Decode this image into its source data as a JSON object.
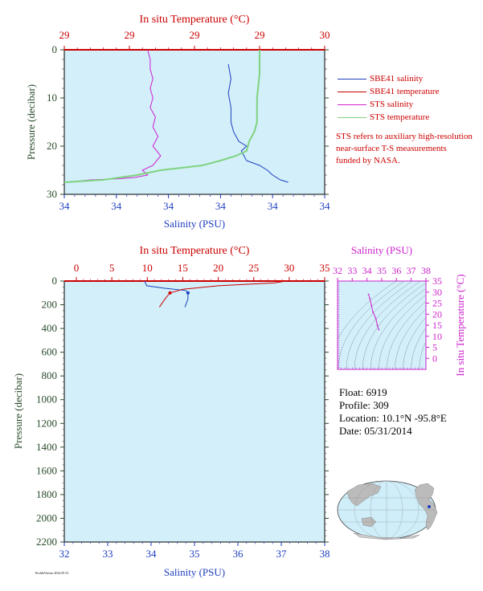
{
  "chart_data": [
    {
      "type": "line",
      "panel": "top",
      "top_axis_label": "In situ Temperature (°C)",
      "top_tick_labels": [
        "29",
        "29",
        "29",
        "29",
        "30"
      ],
      "bottom_axis_label": "Salinity (PSU)",
      "bottom_tick_labels": [
        "34",
        "34",
        "34",
        "34",
        "34",
        "34"
      ],
      "ylabel": "Pressure (decibar)",
      "ylim": [
        0,
        30
      ],
      "y_ticks": [
        0,
        10,
        20,
        30
      ],
      "series": [
        {
          "name": "SBE41 salinity",
          "color": "#1f3fbf",
          "points": [
            [
              0.63,
              3
            ],
            [
              0.64,
              6
            ],
            [
              0.63,
              9
            ],
            [
              0.64,
              12
            ],
            [
              0.64,
              15
            ],
            [
              0.65,
              17
            ],
            [
              0.67,
              19
            ],
            [
              0.7,
              20
            ],
            [
              0.68,
              21
            ],
            [
              0.7,
              23
            ],
            [
              0.75,
              24
            ],
            [
              0.78,
              25
            ],
            [
              0.8,
              26
            ],
            [
              0.83,
              27
            ],
            [
              0.86,
              27.5
            ]
          ]
        },
        {
          "name": "SBE41 temperature",
          "color": "#cc0000",
          "points": []
        },
        {
          "name": "STS salinity",
          "color": "#d020d0",
          "points": [
            [
              0.32,
              0
            ],
            [
              0.33,
              2
            ],
            [
              0.33,
              4
            ],
            [
              0.34,
              6
            ],
            [
              0.33,
              8
            ],
            [
              0.34,
              10
            ],
            [
              0.33,
              12
            ],
            [
              0.35,
              14
            ],
            [
              0.34,
              16
            ],
            [
              0.36,
              18
            ],
            [
              0.34,
              20
            ],
            [
              0.37,
              22
            ],
            [
              0.34,
              24
            ],
            [
              0.3,
              25
            ],
            [
              0.32,
              26
            ],
            [
              0.27,
              26.5
            ],
            [
              0.2,
              26.8
            ],
            [
              0.1,
              27
            ],
            [
              0.05,
              27.3
            ]
          ]
        },
        {
          "name": "STS temperature",
          "color": "#7fd37f",
          "points": [
            [
              0.75,
              0
            ],
            [
              0.75,
              5
            ],
            [
              0.74,
              10
            ],
            [
              0.74,
              15
            ],
            [
              0.73,
              17
            ],
            [
              0.71,
              19
            ],
            [
              0.7,
              21
            ],
            [
              0.66,
              22
            ],
            [
              0.6,
              23
            ],
            [
              0.53,
              24
            ],
            [
              0.45,
              24.5
            ],
            [
              0.37,
              25
            ],
            [
              0.28,
              26
            ],
            [
              0.15,
              27
            ],
            [
              0.0,
              27.5
            ]
          ]
        }
      ]
    },
    {
      "type": "line",
      "panel": "bottom",
      "top_axis_label": "In situ Temperature (°C)",
      "top_ticks": [
        0,
        5,
        10,
        15,
        20,
        25,
        30,
        35
      ],
      "bottom_axis_label": "Salinity (PSU)",
      "bottom_ticks": [
        32,
        33,
        34,
        35,
        36,
        37,
        38
      ],
      "ylabel": "Pressure (decibar)",
      "ylim": [
        0,
        2200
      ],
      "y_ticks": [
        0,
        200,
        400,
        600,
        800,
        1000,
        1200,
        1400,
        1600,
        1800,
        2000,
        2200
      ],
      "series": [
        {
          "name": "SBE41 salinity",
          "color": "#1f3fbf",
          "axis": "salinity",
          "points": [
            [
              33.85,
              0
            ],
            [
              33.9,
              40
            ],
            [
              34.3,
              60
            ],
            [
              34.8,
              80
            ],
            [
              34.85,
              100
            ],
            [
              34.85,
              150
            ],
            [
              34.78,
              220
            ]
          ]
        },
        {
          "name": "SBE41 temperature",
          "color": "#cc0000",
          "axis": "temperature",
          "points": [
            [
              29.5,
              0
            ],
            [
              28,
              15
            ],
            [
              20,
              40
            ],
            [
              15,
              70
            ],
            [
              13.2,
              100
            ],
            [
              12.5,
              150
            ],
            [
              11.7,
              220
            ]
          ]
        }
      ]
    },
    {
      "type": "scatter",
      "panel": "ts-diagram",
      "top_axis_label": "Salinity (PSU)",
      "top_ticks": [
        32,
        33,
        34,
        35,
        36,
        37,
        38
      ],
      "right_axis_label": "In situ Temperature (°C)",
      "right_ticks": [
        0,
        5,
        10,
        15,
        20,
        25,
        30,
        35
      ],
      "xlim": [
        32,
        38
      ],
      "ylim": [
        -5,
        35
      ],
      "points": [
        [
          34.1,
          29
        ],
        [
          34.2,
          27
        ],
        [
          34.3,
          24
        ],
        [
          34.4,
          21
        ],
        [
          34.6,
          18
        ],
        [
          34.7,
          15
        ],
        [
          34.8,
          13
        ]
      ]
    }
  ],
  "info": {
    "float": "Float: 6919",
    "profile": "Profile: 309",
    "location": "Location: 10.1°N -95.8°E",
    "date": "Date: 05/31/2014"
  },
  "legend": {
    "items": [
      {
        "label": "SBE41 salinity",
        "color": "#1f3fbf"
      },
      {
        "label": "SBE41 temperature",
        "color": "#cc0000"
      },
      {
        "label": "STS salinity",
        "color": "#d020d0"
      },
      {
        "label": "STS temperature",
        "color": "#7fd37f"
      }
    ]
  },
  "note": "STS refers to auxiliary high-resolution near-surface T-S measurements funded by NASA.",
  "credit": "ProfileViewer 2014 05 31",
  "colors": {
    "plot_bg": "#d2effa",
    "temperature_axis": "#cc0000",
    "salinity_axis": "#1f3fbf",
    "pressure_axis": "#2a4a2a",
    "ts_axis": "#cc22cc"
  }
}
